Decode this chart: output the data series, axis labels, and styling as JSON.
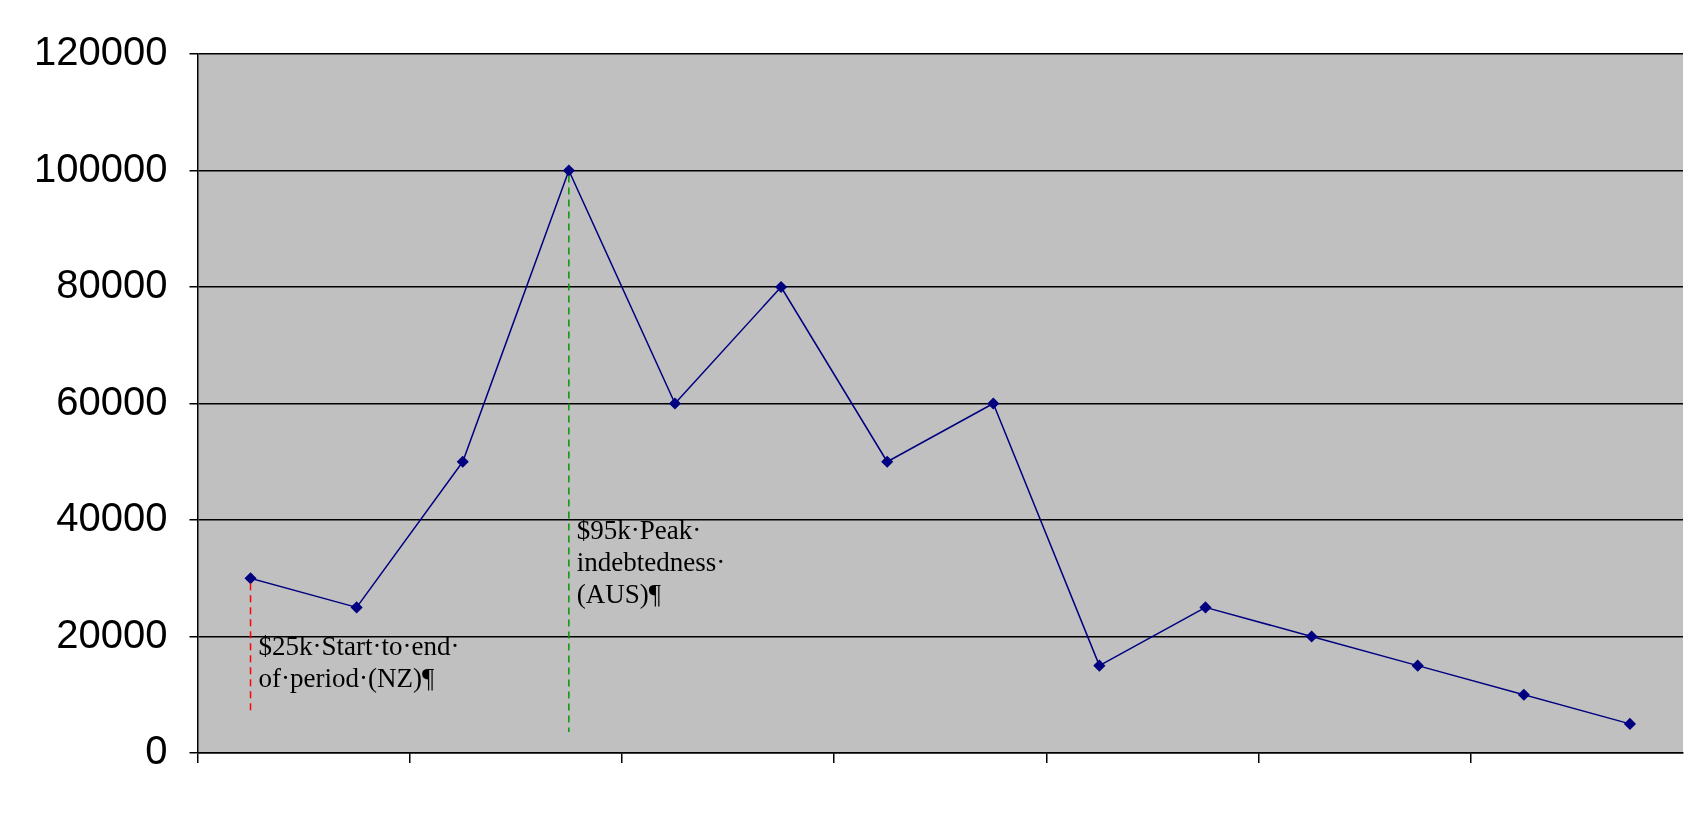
{
  "chart_data": {
    "type": "line",
    "categories": [
      null,
      null,
      null,
      null,
      null,
      null,
      null,
      null,
      null,
      null,
      null,
      null,
      null,
      null
    ],
    "ylim": [
      0,
      120000
    ],
    "yticks": [
      0,
      20000,
      40000,
      60000,
      80000,
      100000,
      120000
    ],
    "grid": "y",
    "legend": false,
    "marker": "diamond",
    "line_style": "solid",
    "series": [
      {
        "color": "#000080",
        "values": [
          30000,
          25000,
          50000,
          100000,
          60000,
          80000,
          50000,
          60000,
          15000,
          25000,
          20000,
          15000,
          10000,
          5000
        ]
      }
    ],
    "annotations": [
      "$25k·Start·to·end·of·period·(NZ)¶",
      "$95k·Peak·indebtedness·(AUS)¶"
    ]
  }
}
